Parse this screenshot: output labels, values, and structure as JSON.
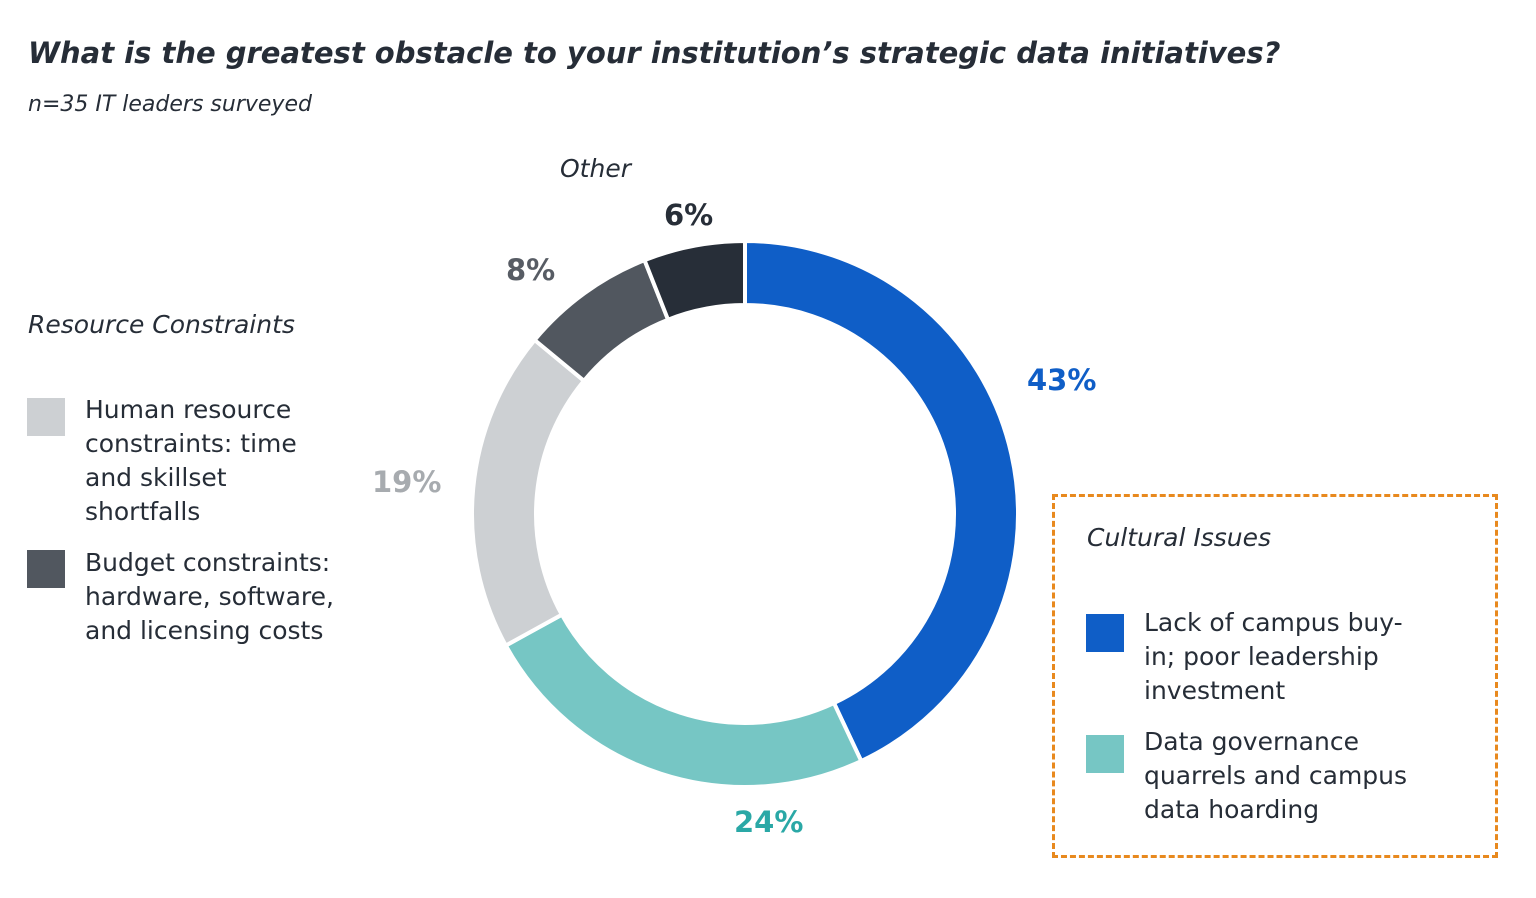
{
  "chart_data": {
    "type": "pie",
    "variant": "donut",
    "title": "What is the greatest obstacle to your institution’s strategic data initiatives?",
    "subtitle": "n=35 IT leaders surveyed",
    "slices": [
      {
        "label": "Lack of campus buy-in; poor leadership investment",
        "value": 43,
        "data_label": "43%",
        "color": "#0f5ec7",
        "label_color": "#0f5ec7",
        "group": "Cultural Issues"
      },
      {
        "label": "Data governance quarrels and campus data hoarding",
        "value": 24,
        "data_label": "24%",
        "color": "#76c6c4",
        "label_color": "#2aa8a6",
        "group": "Cultural Issues"
      },
      {
        "label": "Human resource constraints: time and skillset shortfalls",
        "value": 19,
        "data_label": "19%",
        "color": "#cdd0d3",
        "label_color": "#a7abaf",
        "group": "Resource Constraints"
      },
      {
        "label": "Budget constraints: hardware, software, and licensing costs",
        "value": 8,
        "data_label": "8%",
        "color": "#51575f",
        "label_color": "#575c64",
        "group": "Resource Constraints"
      },
      {
        "label": "Other",
        "value": 6,
        "data_label": "6%",
        "color": "#272e38",
        "label_color": "#272e38",
        "group": "Other"
      }
    ],
    "groups": {
      "resource": "Resource Constraints",
      "cultural": "Cultural Issues",
      "other": "Other"
    },
    "legend": {
      "human": [
        "Human resource",
        "constraints: time",
        "and skillset",
        "shortfalls"
      ],
      "budget": [
        "Budget constraints:",
        "hardware, software,",
        "and licensing costs"
      ],
      "buyin": [
        "Lack of campus buy-",
        "in; poor leadership",
        "investment"
      ],
      "governance": [
        "Data governance",
        "quarrels and campus",
        "data hoarding"
      ]
    },
    "highlight_box_color": "#e8891e"
  }
}
